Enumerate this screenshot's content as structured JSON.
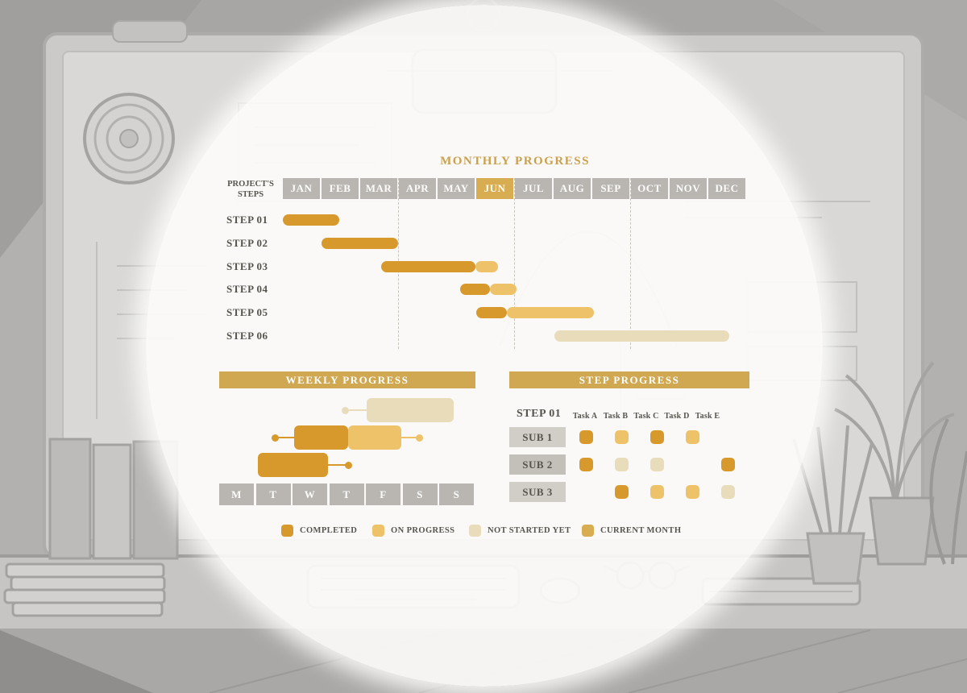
{
  "colors": {
    "completed": "#d7992c",
    "on_progress": "#eec268",
    "not_started": "#e8dcbb",
    "current_month": "#d8ac50",
    "header_bar": "#d0a851",
    "title_gold": "#c9a14c",
    "month_cell_gray": "#b9b6b1",
    "sub_cell_gray": "#d1cec8",
    "sub_cell_gray_dark": "#c3c0b9",
    "text_dark": "#57544e"
  },
  "legend": {
    "items": [
      {
        "label": "COMPLETED",
        "status": "completed"
      },
      {
        "label": "ON PROGRESS",
        "status": "on_progress"
      },
      {
        "label": "NOT STARTED YET",
        "status": "not_started"
      },
      {
        "label": "CURRENT MONTH",
        "status": "current_month"
      }
    ]
  },
  "chart_data": [
    {
      "type": "bar",
      "variant": "gantt-monthly",
      "title": "MONTHLY PROGRESS",
      "row_axis_label": "PROJECT'S STEPS",
      "categories": [
        "JAN",
        "FEB",
        "MAR",
        "APR",
        "MAY",
        "JUN",
        "JUL",
        "AUG",
        "SEP",
        "OCT",
        "NOV",
        "DEC"
      ],
      "current_month": "JUN",
      "quarter_gridlines": [
        "APR",
        "JUL",
        "OCT"
      ],
      "steps": [
        {
          "label": "STEP 01",
          "segments": [
            {
              "status": "completed",
              "from_month": 1.0,
              "to_month": 2.45
            }
          ]
        },
        {
          "label": "STEP 02",
          "segments": [
            {
              "status": "completed",
              "from_month": 2.0,
              "to_month": 3.98
            }
          ]
        },
        {
          "label": "STEP 03",
          "segments": [
            {
              "status": "completed",
              "from_month": 3.54,
              "to_month": 5.98
            },
            {
              "status": "on_progress",
              "from_month": 5.98,
              "to_month": 6.56
            }
          ]
        },
        {
          "label": "STEP 04",
          "segments": [
            {
              "status": "completed",
              "from_month": 5.58,
              "to_month": 6.35
            },
            {
              "status": "on_progress",
              "from_month": 6.35,
              "to_month": 7.04
            }
          ]
        },
        {
          "label": "STEP 05",
          "segments": [
            {
              "status": "completed",
              "from_month": 6.0,
              "to_month": 6.79
            },
            {
              "status": "on_progress",
              "from_month": 6.79,
              "to_month": 9.04
            }
          ]
        },
        {
          "label": "STEP 06",
          "segments": [
            {
              "status": "not_started",
              "from_month": 8.02,
              "to_month": 12.54
            }
          ]
        }
      ]
    },
    {
      "type": "bar",
      "variant": "weekly-range",
      "title": "WEEKLY PROGRESS",
      "categories": [
        "M",
        "T",
        "W",
        "T",
        "F",
        "S",
        "S"
      ],
      "rows": [
        {
          "segments": [
            {
              "status": "not_started",
              "from_day": 4.02,
              "to_day": 6.4
            }
          ],
          "left_point": {
            "pos_day": 3.43,
            "status": "not_started"
          },
          "right_point": null
        },
        {
          "segments": [
            {
              "status": "completed",
              "from_day": 2.04,
              "to_day": 3.52
            },
            {
              "status": "on_progress",
              "from_day": 3.52,
              "to_day": 4.97
            }
          ],
          "left_point": {
            "pos_day": 1.52,
            "status": "completed"
          },
          "right_point": {
            "pos_day": 5.47,
            "status": "on_progress"
          }
        },
        {
          "segments": [
            {
              "status": "completed",
              "from_day": 1.05,
              "to_day": 2.97
            }
          ],
          "left_point": null,
          "right_point": {
            "pos_day": 3.52,
            "status": "completed"
          }
        }
      ]
    },
    {
      "type": "heatmap",
      "variant": "status-matrix",
      "title": "STEP PROGRESS",
      "step_label": "STEP 01",
      "columns": [
        "Task A",
        "Task B",
        "Task C",
        "Task D",
        "Task E"
      ],
      "rows": [
        {
          "label": "SUB 1",
          "cells": [
            "completed",
            "on_progress",
            "completed",
            "on_progress",
            null
          ]
        },
        {
          "label": "SUB 2",
          "cells": [
            "completed",
            "not_started",
            "not_started",
            null,
            "completed"
          ]
        },
        {
          "label": "SUB 3",
          "cells": [
            null,
            "completed",
            "on_progress",
            "on_progress",
            "not_started"
          ]
        }
      ]
    }
  ]
}
